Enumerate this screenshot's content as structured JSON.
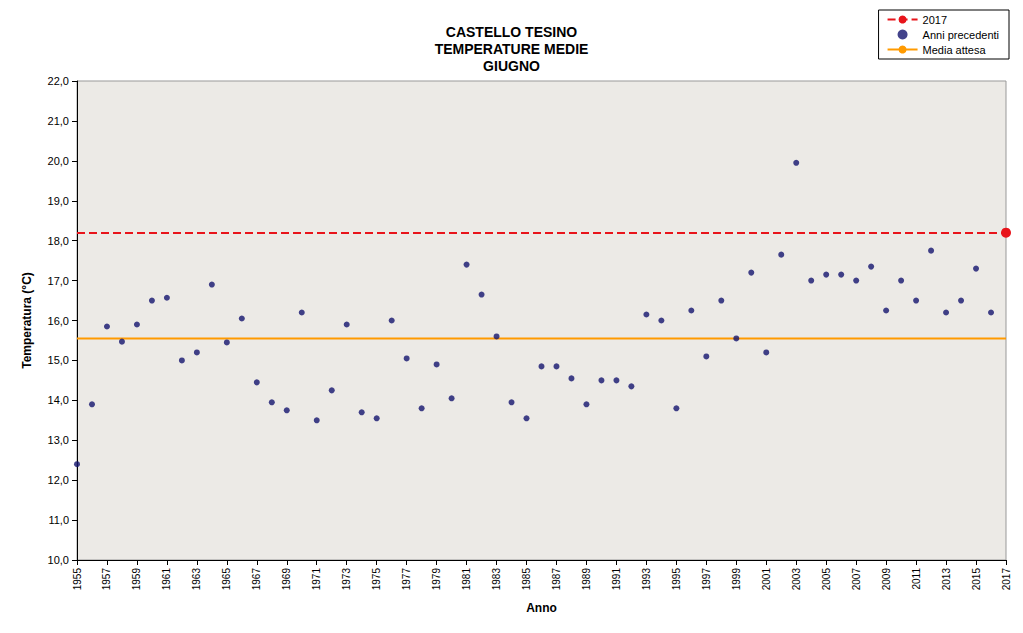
{
  "chart_data": {
    "type": "scatter",
    "title": "CASTELLO TESINO\nTEMPERATURE MEDIE\nGIUGNO",
    "x_label": "Anno",
    "y_label": "Temperatura (°C)",
    "xlim": [
      1955,
      2017
    ],
    "xticks": [
      1955,
      1957,
      1959,
      1961,
      1963,
      1965,
      1967,
      1969,
      1971,
      1973,
      1975,
      1977,
      1979,
      1981,
      1983,
      1985,
      1987,
      1989,
      1991,
      1993,
      1995,
      1997,
      1999,
      2001,
      2003,
      2005,
      2007,
      2009,
      2011,
      2013,
      2015,
      2017
    ],
    "ylim": [
      10,
      22
    ],
    "yticks": [
      {
        "value": 10,
        "label": "10,0"
      },
      {
        "value": 11,
        "label": "11,0"
      },
      {
        "value": 12,
        "label": "12,0"
      },
      {
        "value": 13,
        "label": "13,0"
      },
      {
        "value": 14,
        "label": "14,0"
      },
      {
        "value": 15,
        "label": "15,0"
      },
      {
        "value": 16,
        "label": "16,0"
      },
      {
        "value": 17,
        "label": "17,0"
      },
      {
        "value": 18,
        "label": "18,0"
      },
      {
        "value": 19,
        "label": "19,0"
      },
      {
        "value": 20,
        "label": "20,0"
      },
      {
        "value": 21,
        "label": "21,0"
      },
      {
        "value": 22,
        "label": "22,0"
      }
    ],
    "grid": false,
    "legend": "top-right",
    "series": [
      {
        "name": "2017",
        "type": "line",
        "marker": "circle",
        "line_style": "dashed",
        "color": "#e8141b",
        "x": [
          2017
        ],
        "values": [
          18.2
        ]
      },
      {
        "name": "Anni precedenti",
        "type": "scatter",
        "marker": "circle",
        "color": "#14146e",
        "x": [
          1955,
          1956,
          1957,
          1958,
          1959,
          1960,
          1961,
          1962,
          1963,
          1964,
          1965,
          1966,
          1967,
          1968,
          1969,
          1970,
          1971,
          1972,
          1973,
          1974,
          1975,
          1976,
          1977,
          1978,
          1979,
          1980,
          1981,
          1982,
          1983,
          1984,
          1985,
          1986,
          1987,
          1988,
          1989,
          1990,
          1991,
          1992,
          1993,
          1994,
          1995,
          1996,
          1997,
          1998,
          1999,
          2000,
          2001,
          2002,
          2003,
          2004,
          2005,
          2006,
          2007,
          2008,
          2009,
          2010,
          2011,
          2012,
          2013,
          2014,
          2015,
          2016
        ],
        "values": [
          12.4,
          13.9,
          15.85,
          15.47,
          15.9,
          16.5,
          16.57,
          15.0,
          15.2,
          16.9,
          15.45,
          16.05,
          14.45,
          13.95,
          13.75,
          16.2,
          13.5,
          14.25,
          15.9,
          13.7,
          13.55,
          16.0,
          15.05,
          13.8,
          14.9,
          14.05,
          17.4,
          16.65,
          15.6,
          13.95,
          13.55,
          14.85,
          14.85,
          14.55,
          13.9,
          14.5,
          14.5,
          14.35,
          16.15,
          16.0,
          13.8,
          16.25,
          15.1,
          16.5,
          15.55,
          17.2,
          15.2,
          17.65,
          19.95,
          17.0,
          17.15,
          17.15,
          17.0,
          17.35,
          16.25,
          17.0,
          16.5,
          17.75,
          16.2,
          16.5,
          17.3,
          16.2
        ]
      },
      {
        "name": "Media attesa",
        "type": "line",
        "marker": "none",
        "line_style": "solid",
        "color": "#ff9a00",
        "x": [
          1955,
          2017
        ],
        "values": [
          15.55,
          15.55
        ]
      }
    ]
  }
}
